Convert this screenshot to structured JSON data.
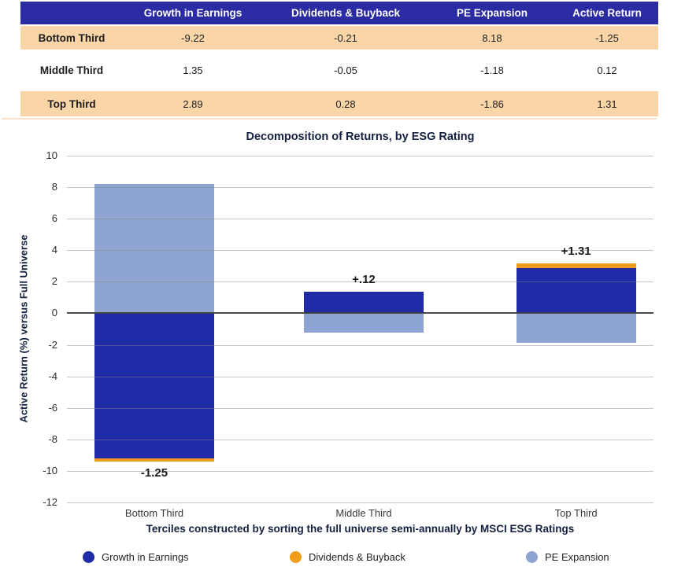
{
  "colors": {
    "header_bg": "#2B2BA3",
    "row_highlight_bg": "#FAD5A8",
    "navy_bar": "#1F2BA7",
    "orange_bar": "#F09C1C",
    "light_blue_bar": "#8EA4D2",
    "title_text": "#13203F",
    "grid_line": "#C4C4C4",
    "zero_line": "#474747"
  },
  "table": {
    "corner_label": "",
    "columns": [
      "Growth in Earnings",
      "Dividends & Buyback",
      "PE Expansion",
      "Active Return"
    ],
    "rows": [
      {
        "label": "Bottom Third",
        "values": [
          "-9.22",
          "-0.21",
          "8.18",
          "-1.25"
        ],
        "highlighted": true
      },
      {
        "label": "Middle Third",
        "values": [
          "1.35",
          "-0.05",
          "-1.18",
          "0.12"
        ],
        "highlighted": false
      },
      {
        "label": "Top Third",
        "values": [
          "2.89",
          "0.28",
          "-1.86",
          "1.31"
        ],
        "highlighted": true
      }
    ]
  },
  "chart_data": {
    "type": "bar",
    "stacked": true,
    "title": "Decomposition of Returns, by ESG Rating",
    "ylabel": "Active Return (%) versus Full Universe",
    "xlabel": "Terciles constructed by sorting the full universe semi-annually by MSCI ESG Ratings",
    "categories": [
      "Bottom Third",
      "Middle Third",
      "Top Third"
    ],
    "series": [
      {
        "name": "Growth in Earnings",
        "color": "#1F2BA7",
        "values": [
          -9.22,
          1.35,
          2.89
        ]
      },
      {
        "name": "Dividends & Buyback",
        "color": "#F09C1C",
        "values": [
          -0.21,
          -0.05,
          0.28
        ]
      },
      {
        "name": "PE Expansion",
        "color": "#8EA4D2",
        "values": [
          8.18,
          -1.18,
          -1.86
        ]
      }
    ],
    "bar_total_labels": [
      "-1.25",
      "+.12",
      "+1.31"
    ],
    "ylim": [
      -12,
      10
    ],
    "ytick_step": 2,
    "grid": true,
    "legend_position": "bottom",
    "legend": [
      "Growth in Earnings",
      "Dividends & Buyback",
      "PE Expansion"
    ]
  }
}
